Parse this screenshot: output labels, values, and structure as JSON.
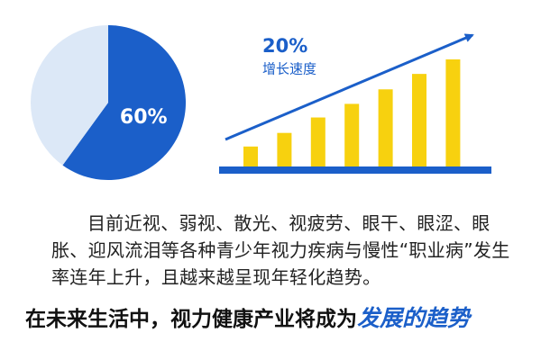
{
  "chart_data": [
    {
      "type": "pie",
      "values": [
        60,
        40
      ],
      "value_labels": [
        "60%",
        null
      ],
      "colors": [
        "#1b5fc9",
        "#dce8f7"
      ]
    },
    {
      "type": "bar",
      "values": [
        23,
        38,
        55,
        70,
        86,
        103,
        119
      ],
      "color": "#f7d10f",
      "baseline_color": "#1b5fc9",
      "annotation": "20%",
      "subtitle": "增长速度"
    }
  ],
  "body": "目前近视、弱视、散光、视疲劳、眼干、眼涩、眼胀、迎风流泪等各种青少年视力疾病与慢性“职业病”发生率连年上升，且越来越呈现年轻化趋势。",
  "headline": {
    "text": "在未来生活中，视力健康产业将成为",
    "highlight": "发展的趋势"
  }
}
